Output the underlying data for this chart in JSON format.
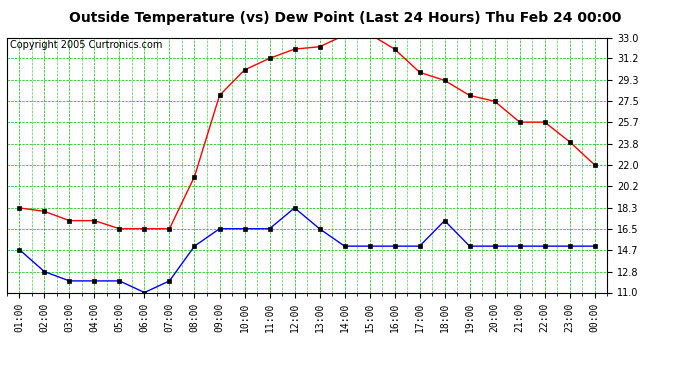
{
  "title": "Outside Temperature (vs) Dew Point (Last 24 Hours) Thu Feb 24 00:00",
  "copyright": "Copyright 2005 Curtronics.com",
  "x_labels": [
    "01:00",
    "02:00",
    "03:00",
    "04:00",
    "05:00",
    "06:00",
    "07:00",
    "08:00",
    "09:00",
    "10:00",
    "11:00",
    "12:00",
    "13:00",
    "14:00",
    "15:00",
    "16:00",
    "17:00",
    "18:00",
    "19:00",
    "20:00",
    "21:00",
    "22:00",
    "23:00",
    "00:00"
  ],
  "y_ticks": [
    11.0,
    12.8,
    14.7,
    16.5,
    18.3,
    20.2,
    22.0,
    23.8,
    25.7,
    27.5,
    29.3,
    31.2,
    33.0
  ],
  "y_min": 11.0,
  "y_max": 33.0,
  "temp_data": [
    18.3,
    18.0,
    17.2,
    17.2,
    16.5,
    16.5,
    16.5,
    21.0,
    28.0,
    30.2,
    31.2,
    32.0,
    32.2,
    33.2,
    33.3,
    32.0,
    30.0,
    29.3,
    28.0,
    27.5,
    25.7,
    25.7,
    24.0,
    22.0
  ],
  "dew_data": [
    14.7,
    12.8,
    12.0,
    12.0,
    12.0,
    11.0,
    12.0,
    15.0,
    16.5,
    16.5,
    16.5,
    18.3,
    16.5,
    15.0,
    15.0,
    15.0,
    15.0,
    17.2,
    15.0,
    15.0,
    15.0,
    15.0,
    15.0,
    15.0
  ],
  "temp_color": "#ff0000",
  "dew_color": "#0000ff",
  "bg_color": "#ffffff",
  "grid_color": "#00bb00",
  "title_fontsize": 10,
  "copyright_fontsize": 7,
  "tick_fontsize": 7
}
